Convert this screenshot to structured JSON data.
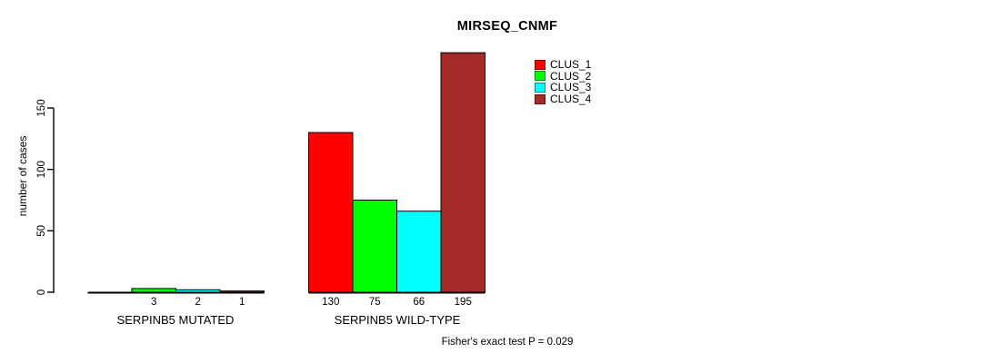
{
  "chart_data": {
    "type": "bar",
    "title": "MIRSEQ_CNMF",
    "ylabel": "number of cases",
    "yticks": [
      0,
      50,
      100,
      150
    ],
    "ylim": [
      0,
      200
    ],
    "grid": false,
    "legend_position": "top-right",
    "background": "#FFFFFF",
    "axis_color": "#000000",
    "groups": [
      {
        "label": "SERPINB5 MUTATED",
        "bar_labels": [
          "",
          "3",
          "2",
          "1"
        ]
      },
      {
        "label": "SERPINB5 WILD-TYPE",
        "bar_labels": [
          "130",
          "75",
          "66",
          "195"
        ]
      }
    ],
    "series": [
      {
        "name": "CLUS_1",
        "color": "#FF0000",
        "values": [
          0,
          130
        ]
      },
      {
        "name": "CLUS_2",
        "color": "#00FF00",
        "values": [
          3,
          75
        ]
      },
      {
        "name": "CLUS_3",
        "color": "#00FFFF",
        "values": [
          2,
          66
        ]
      },
      {
        "name": "CLUS_4",
        "color": "#A52A2A",
        "values": [
          1,
          195
        ]
      }
    ],
    "annotation": "Fisher's exact test P = 0.029"
  }
}
